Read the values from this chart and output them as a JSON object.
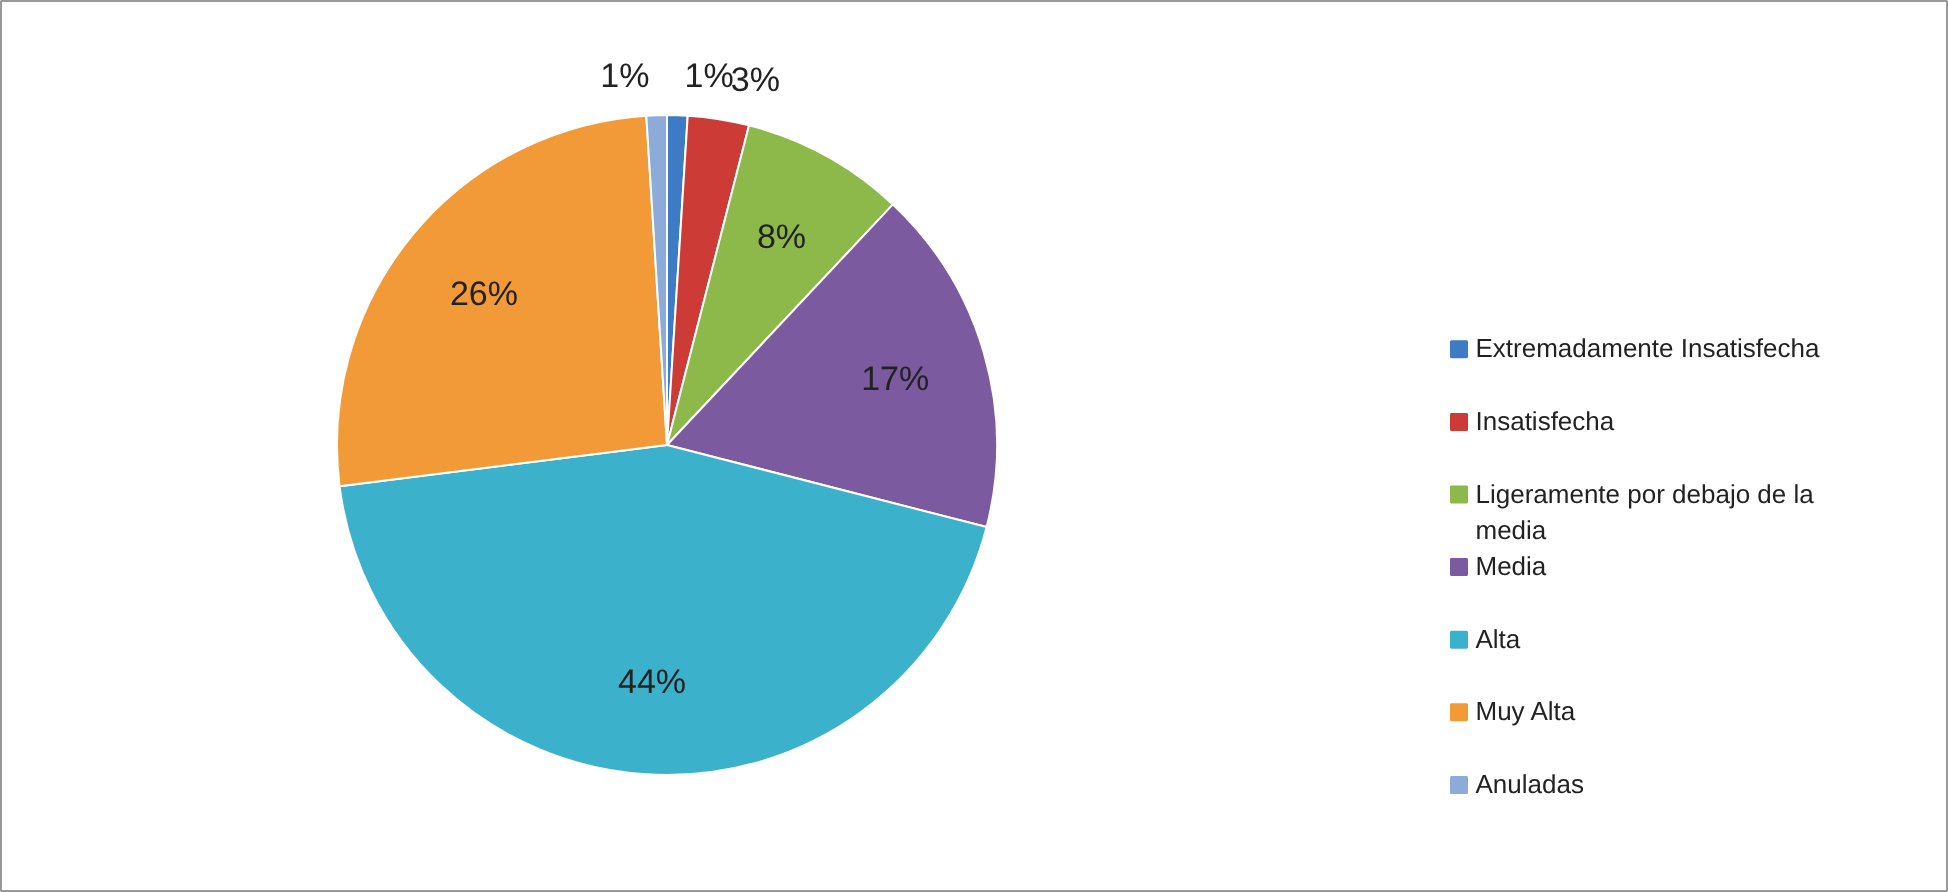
{
  "chart_data": {
    "type": "pie",
    "categories": [
      "Extremadamente Insatisfecha",
      "Insatisfecha",
      "Ligeramente por debajo de la media",
      "Media",
      "Alta",
      "Muy Alta",
      "Anuladas"
    ],
    "values": [
      1,
      3,
      8,
      17,
      44,
      26,
      1
    ],
    "colors": [
      "#3d7bc4",
      "#cc3b36",
      "#8db84a",
      "#7b5aa0",
      "#3cb1cc",
      "#f39a38",
      "#8cabd8"
    ],
    "value_labels": [
      "1%",
      "3%",
      "8%",
      "17%",
      "44%",
      "26%",
      "1%"
    ],
    "legend": "right"
  }
}
